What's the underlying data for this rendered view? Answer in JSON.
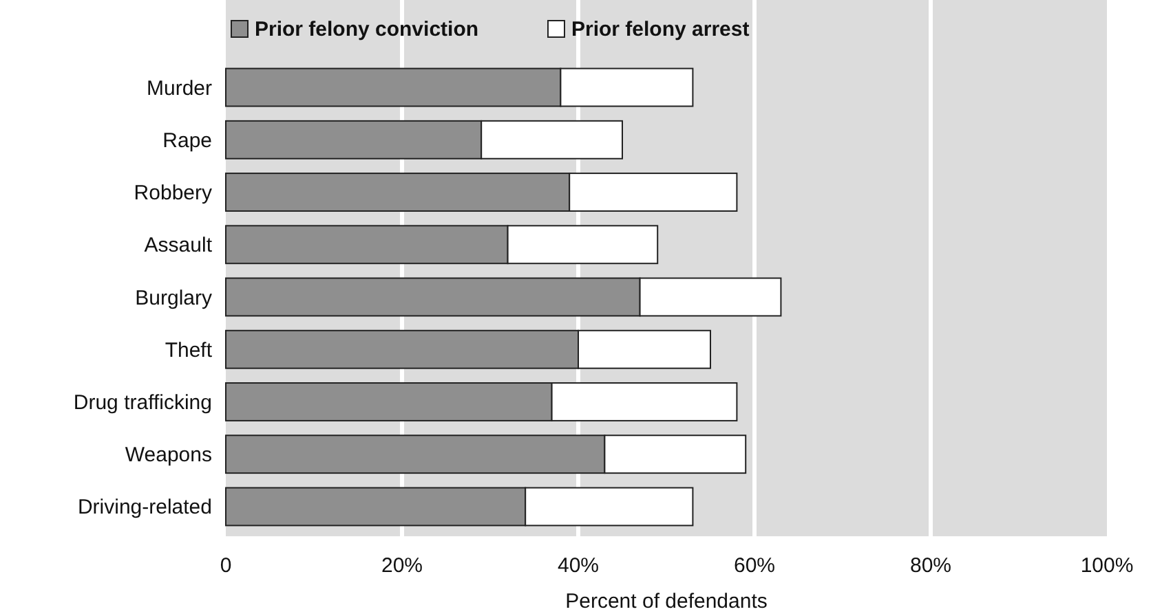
{
  "chart_data": {
    "type": "bar",
    "orientation": "horizontal",
    "stacked": true,
    "xlabel": "Percent of defendants",
    "categories": [
      "Murder",
      "Rape",
      "Robbery",
      "Assault",
      "Burglary",
      "Theft",
      "Drug trafficking",
      "Weapons",
      "Driving-related"
    ],
    "series": [
      {
        "name": "Prior felony conviction",
        "color": "#8f8f8f",
        "values": [
          38,
          29,
          39,
          32,
          47,
          40,
          37,
          43,
          34
        ]
      },
      {
        "name": "Prior felony arrest",
        "color": "#ffffff",
        "values": [
          15,
          16,
          19,
          17,
          16,
          15,
          21,
          16,
          19
        ]
      }
    ],
    "xlim": [
      0,
      100
    ],
    "xticks": [
      {
        "value": 0,
        "label": "0"
      },
      {
        "value": 20,
        "label": "20%"
      },
      {
        "value": 40,
        "label": "40%"
      },
      {
        "value": 60,
        "label": "60%"
      },
      {
        "value": 80,
        "label": "80%"
      },
      {
        "value": 100,
        "label": "100%"
      }
    ],
    "grid": "x",
    "legend": "top left"
  }
}
